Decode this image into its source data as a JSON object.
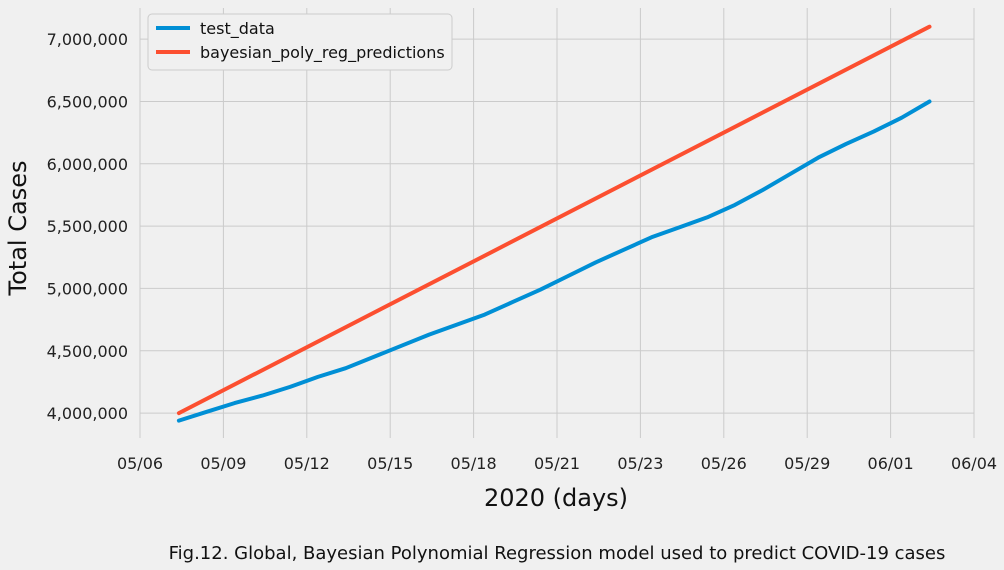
{
  "chart_data": {
    "type": "line",
    "xlabel": "2020 (days)",
    "ylabel": "Total Cases",
    "caption": "Fig.12. Global, Bayesian Polynomial Regression model used to predict COVID-19 cases",
    "x_ticks": [
      "05/06",
      "05/09",
      "05/12",
      "05/15",
      "05/18",
      "05/21",
      "05/23",
      "05/26",
      "05/29",
      "06/01",
      "06/04"
    ],
    "x_tick_values": [
      0,
      3,
      6,
      9,
      12,
      15,
      18,
      21,
      24,
      27,
      30
    ],
    "xlim": [
      0,
      30
    ],
    "y_ticks": [
      "4,000,000",
      "4,500,000",
      "5,000,000",
      "5,500,000",
      "6,000,000",
      "6,500,000",
      "7,000,000"
    ],
    "y_tick_values": [
      4000000,
      4500000,
      5000000,
      5500000,
      6000000,
      6500000,
      7000000
    ],
    "ylim": [
      3800000,
      7250000
    ],
    "grid": true,
    "legend_position": "top-left",
    "series": [
      {
        "name": "test_data",
        "color": "#008fd5",
        "x": [
          1.4,
          2.4,
          3.4,
          4.4,
          5.4,
          6.4,
          7.4,
          8.4,
          9.4,
          10.4,
          11.4,
          12.4,
          13.4,
          14.4,
          15.4,
          16.4,
          17.4,
          18.4,
          19.4,
          20.4,
          21.4,
          22.4,
          23.4,
          24.4,
          25.4,
          26.4,
          27.4,
          28.4
        ],
        "values": [
          3940000,
          4010000,
          4080000,
          4140000,
          4210000,
          4290000,
          4360000,
          4450000,
          4540000,
          4630000,
          4710000,
          4790000,
          4890000,
          4990000,
          5100000,
          5210000,
          5310000,
          5410000,
          5490000,
          5570000,
          5670000,
          5790000,
          5920000,
          6050000,
          6160000,
          6260000,
          6370000,
          6500000
        ]
      },
      {
        "name": "bayesian_poly_reg_predictions",
        "color": "#fc4f30",
        "x": [
          1.4,
          28.4
        ],
        "values": [
          4000000,
          7100000
        ]
      }
    ]
  }
}
